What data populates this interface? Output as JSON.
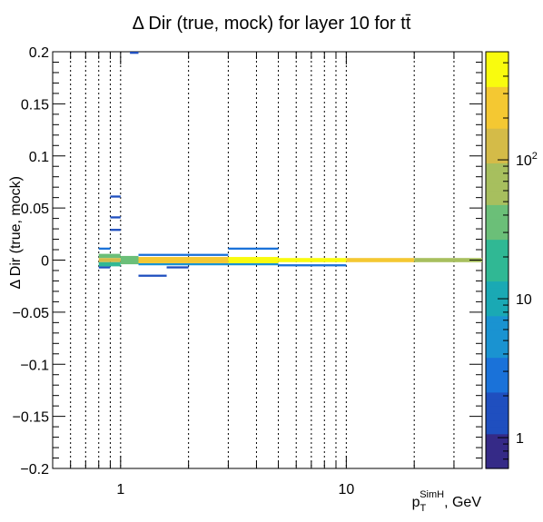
{
  "chart_data": {
    "type": "heatmap",
    "title": "Δ Dir (true, mock) for layer 10 for tt̄",
    "xlabel": {
      "base": "p",
      "sub": "T",
      "sup": "SimH",
      "suffix": ", GeV"
    },
    "ylabel": "Δ Dir (true, mock)",
    "x_scale": "log",
    "xlim": [
      0.5,
      40
    ],
    "ylim": [
      -0.2,
      0.2
    ],
    "x_tick_labels": [
      {
        "value": 1,
        "label": "1"
      },
      {
        "value": 10,
        "label": "10"
      }
    ],
    "y_tick_labels": [
      {
        "value": 0.2,
        "label": "0.2"
      },
      {
        "value": 0.15,
        "label": "0.15"
      },
      {
        "value": 0.1,
        "label": "0.1"
      },
      {
        "value": 0.05,
        "label": "0.05"
      },
      {
        "value": 0,
        "label": "0"
      },
      {
        "value": -0.05,
        "label": "−0.05"
      },
      {
        "value": -0.1,
        "label": "−0.1"
      },
      {
        "value": -0.15,
        "label": "−0.15"
      },
      {
        "value": -0.2,
        "label": "−0.2"
      }
    ],
    "x_gridlines": [
      0.6,
      0.7,
      0.8,
      0.9,
      1,
      2,
      3,
      4,
      5,
      6,
      7,
      8,
      9,
      10,
      20,
      30
    ],
    "grid_x": true,
    "grid_y": false,
    "z_scale": "log",
    "zlim": [
      0.6,
      600
    ],
    "z_tick_labels": [
      {
        "value": 1,
        "label": "1"
      },
      {
        "value": 10,
        "label": "10"
      },
      {
        "value": 100,
        "label": "10",
        "sup": "2"
      }
    ],
    "colormap": [
      "#352a87",
      "#1f4fbf",
      "#1a72d9",
      "#1a93d1",
      "#1aa9b4",
      "#30b894",
      "#6bbf78",
      "#a7bf5e",
      "#d4bb48",
      "#f4c832",
      "#f9fb0e"
    ],
    "cells": [
      {
        "x0": 1.1,
        "x1": 1.2,
        "y0": 0.198,
        "y1": 0.2,
        "z": 2
      },
      {
        "x0": 0.9,
        "x1": 1.0,
        "y0": 0.06,
        "y1": 0.062,
        "z": 2
      },
      {
        "x0": 0.9,
        "x1": 1.0,
        "y0": 0.04,
        "y1": 0.042,
        "z": 2
      },
      {
        "x0": 0.9,
        "x1": 1.0,
        "y0": 0.028,
        "y1": 0.03,
        "z": 2
      },
      {
        "x0": 0.8,
        "x1": 0.9,
        "y0": 0.01,
        "y1": 0.012,
        "z": 3
      },
      {
        "x0": 0.8,
        "x1": 0.9,
        "y0": -0.008,
        "y1": -0.006,
        "z": 2
      },
      {
        "x0": 1.2,
        "x1": 3.0,
        "y0": 0.004,
        "y1": 0.006,
        "z": 3
      },
      {
        "x0": 3.0,
        "x1": 5.0,
        "y0": 0.01,
        "y1": 0.012,
        "z": 3
      },
      {
        "x0": 1.2,
        "x1": 1.6,
        "y0": -0.016,
        "y1": -0.014,
        "z": 2
      },
      {
        "x0": 1.6,
        "x1": 2.0,
        "y0": -0.008,
        "y1": -0.006,
        "z": 2
      },
      {
        "x0": 1.2,
        "x1": 3.0,
        "y0": -0.005,
        "y1": -0.003,
        "z": 4
      },
      {
        "x0": 3.0,
        "x1": 5.0,
        "y0": -0.005,
        "y1": -0.003,
        "z": 4
      },
      {
        "x0": 5.0,
        "x1": 10.0,
        "y0": -0.006,
        "y1": -0.004,
        "z": 3
      },
      {
        "x0": 0.8,
        "x1": 1.0,
        "y0": 0.002,
        "y1": 0.006,
        "z": 40
      },
      {
        "x0": 0.8,
        "x1": 1.0,
        "y0": -0.002,
        "y1": 0.002,
        "z": 120
      },
      {
        "x0": 0.8,
        "x1": 1.0,
        "y0": -0.006,
        "y1": -0.002,
        "z": 20
      },
      {
        "x0": 1.0,
        "x1": 1.2,
        "y0": -0.004,
        "y1": 0.004,
        "z": 40
      },
      {
        "x0": 1.2,
        "x1": 3.0,
        "y0": -0.003,
        "y1": 0.003,
        "z": 300
      },
      {
        "x0": 3.0,
        "x1": 5.0,
        "y0": -0.003,
        "y1": 0.003,
        "z": 500
      },
      {
        "x0": 5.0,
        "x1": 10.0,
        "y0": -0.002,
        "y1": 0.002,
        "z": 600
      },
      {
        "x0": 10.0,
        "x1": 20.0,
        "y0": -0.002,
        "y1": 0.002,
        "z": 250
      },
      {
        "x0": 20.0,
        "x1": 40.0,
        "y0": -0.002,
        "y1": 0.002,
        "z": 80
      }
    ]
  }
}
